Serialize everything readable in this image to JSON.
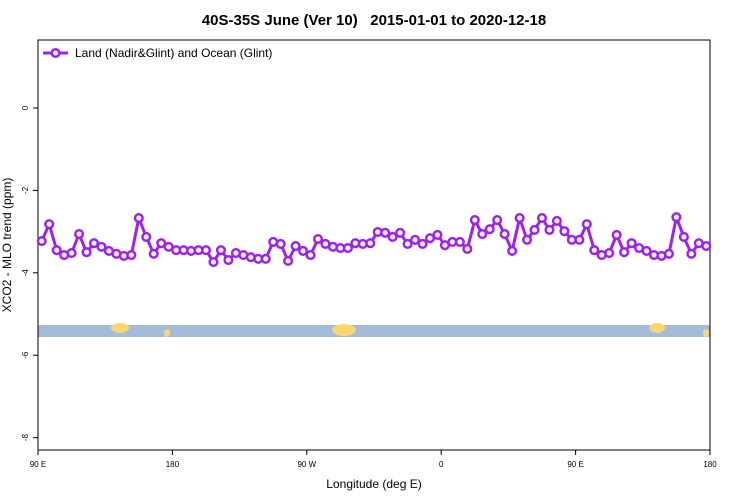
{
  "chart_data": {
    "type": "line",
    "title": "40S-35S June (Ver 10)   2015-01-01 to 2020-12-18",
    "x_label": "Longitude (deg E)",
    "y_label": "XCO2 - MLO trend (ppm)",
    "x": [
      92.5,
      97.5,
      102.5,
      107.5,
      112.5,
      117.5,
      122.5,
      127.5,
      132.5,
      137.5,
      142.5,
      147.5,
      152.5,
      157.5,
      162.5,
      167.5,
      172.5,
      177.5,
      182.5,
      187.5,
      192.5,
      197.5,
      202.5,
      207.5,
      212.5,
      217.5,
      222.5,
      227.5,
      232.5,
      237.5,
      242.5,
      247.5,
      252.5,
      257.5,
      262.5,
      267.5,
      272.5,
      277.5,
      282.5,
      287.5,
      292.5,
      297.5,
      302.5,
      307.5,
      312.5,
      317.5,
      322.5,
      327.5,
      332.5,
      337.5,
      342.5,
      347.5,
      352.5,
      357.5,
      362.5,
      367.5,
      372.5,
      377.5,
      382.5,
      387.5,
      392.5,
      397.5,
      402.5,
      407.5,
      412.5,
      417.5,
      422.5,
      427.5,
      432.5,
      437.5,
      442.5,
      447.5,
      452.5,
      457.5,
      462.5,
      467.5,
      472.5,
      477.5,
      482.5,
      487.5,
      492.5,
      497.5,
      502.5,
      507.5,
      512.5,
      517.5,
      522.5,
      527.5,
      532.5,
      537.5
    ],
    "series": [
      {
        "name": "Land (Nadir&Glint) and Ocean (Glint)",
        "color": "#a020f0",
        "values": [
          -3.23,
          -2.82,
          -3.45,
          -3.57,
          -3.52,
          -3.06,
          -3.5,
          -3.28,
          -3.37,
          -3.47,
          -3.54,
          -3.59,
          -3.57,
          -2.67,
          -3.13,
          -3.54,
          -3.28,
          -3.37,
          -3.45,
          -3.45,
          -3.47,
          -3.45,
          -3.45,
          -3.74,
          -3.45,
          -3.69,
          -3.52,
          -3.57,
          -3.62,
          -3.66,
          -3.66,
          -3.25,
          -3.3,
          -3.71,
          -3.35,
          -3.47,
          -3.57,
          -3.18,
          -3.3,
          -3.37,
          -3.4,
          -3.4,
          -3.28,
          -3.3,
          -3.28,
          -3.01,
          -3.03,
          -3.13,
          -3.03,
          -3.3,
          -3.2,
          -3.3,
          -3.16,
          -3.08,
          -3.33,
          -3.25,
          -3.25,
          -3.42,
          -2.72,
          -3.06,
          -2.94,
          -2.72,
          -3.06,
          -3.47,
          -2.67,
          -3.2,
          -2.96,
          -2.67,
          -2.96,
          -2.74,
          -2.99,
          -3.2,
          -3.2,
          -2.82,
          -3.45,
          -3.57,
          -3.52,
          -3.08,
          -3.5,
          -3.28,
          -3.4,
          -3.47,
          -3.57,
          -3.59,
          -3.54,
          -2.65,
          -3.13,
          -3.54,
          -3.28,
          -3.35
        ]
      }
    ],
    "xlim": [
      90,
      540
    ],
    "xticks": [
      {
        "value": 90,
        "label": "90 E"
      },
      {
        "value": 180,
        "label": "180"
      },
      {
        "value": 270,
        "label": "90 W"
      },
      {
        "value": 360,
        "label": "0"
      },
      {
        "value": 450,
        "label": "90 E"
      },
      {
        "value": 540,
        "label": "180"
      }
    ],
    "ylim": [
      -8.3,
      1.65
    ],
    "yticks": [
      -8,
      -6,
      -4,
      -2,
      0
    ],
    "legend": "top-left"
  }
}
